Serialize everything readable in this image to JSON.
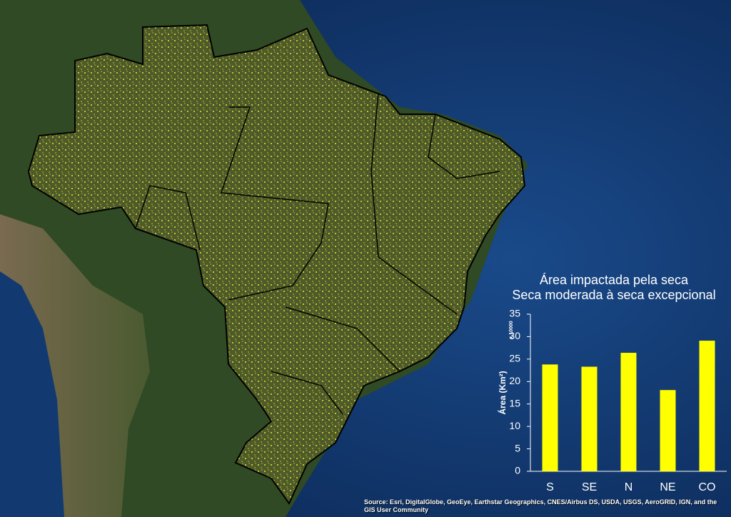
{
  "chart_data": {
    "type": "bar",
    "title": "Área impactada pela seca",
    "subtitle": "Seca moderada à seca excepcional",
    "y_label": "Área (Km²)",
    "y_multiplier": "x 10000",
    "categories": [
      "S",
      "SE",
      "N",
      "NE",
      "CO"
    ],
    "values": [
      23.8,
      23.3,
      26.4,
      18.1,
      29.1
    ],
    "color": "#ffff00",
    "ylim": [
      0,
      35
    ],
    "yticks": [
      0,
      5,
      10,
      15,
      20,
      25,
      30,
      35
    ],
    "grid": false,
    "source": "Source: Esri, DigitalGlobe, GeoEye, Earthstar Geographics, CNES/Airbus DS, USDA, USGS, AeroGRID, IGN, and the GIS User Community"
  }
}
